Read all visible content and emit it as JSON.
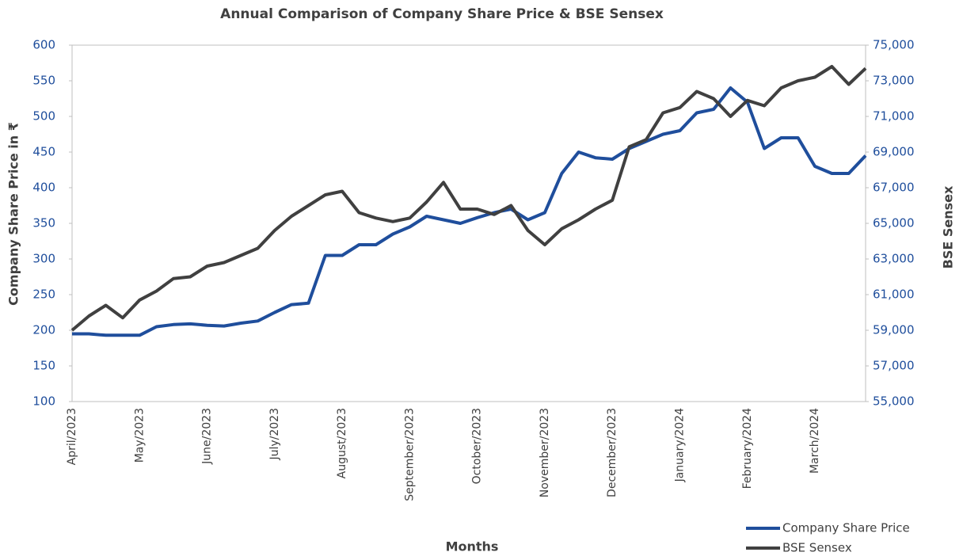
{
  "chart_data": {
    "type": "line",
    "title": "Annual Comparison of Company Share Price & BSE Sensex",
    "x_label": "Months",
    "y_label": "Company Share Price in ₹",
    "y2_label": "BSE Sensex",
    "categories": [
      "April/2023",
      null,
      null,
      null,
      "May/2023",
      null,
      null,
      null,
      "June/2023",
      null,
      null,
      null,
      "July/2023",
      null,
      null,
      null,
      "August/2023",
      null,
      null,
      null,
      "September/2023",
      null,
      null,
      null,
      "October/2023",
      null,
      null,
      null,
      "November/2023",
      null,
      null,
      null,
      "December/2023",
      null,
      null,
      null,
      "January/2024",
      null,
      null,
      null,
      "February/2024",
      null,
      null,
      null,
      "March/2024",
      null,
      null,
      null
    ],
    "series": [
      {
        "name": "Company Share Price",
        "color": "#1f4e9c",
        "values": [
          195,
          195,
          193,
          193,
          193,
          205,
          208,
          209,
          207,
          206,
          210,
          213,
          225,
          236,
          238,
          305,
          305,
          320,
          320,
          335,
          345,
          360,
          355,
          350,
          358,
          365,
          370,
          355,
          365,
          420,
          450,
          442,
          440,
          455,
          465,
          475,
          480,
          505,
          510,
          540,
          520,
          455,
          470,
          470,
          430,
          420,
          420,
          445
        ]
      },
      {
        "name": "BSE Sensex",
        "color": "#404040",
        "axis": "y2",
        "values": [
          59000,
          59800,
          60400,
          59700,
          60700,
          61200,
          61900,
          62000,
          62600,
          62800,
          63200,
          63600,
          64600,
          65400,
          66000,
          66600,
          66800,
          65600,
          65300,
          65100,
          65300,
          66200,
          67300,
          65800,
          65800,
          65500,
          66000,
          64600,
          63800,
          64700,
          65200,
          65800,
          66300,
          69300,
          69700,
          71200,
          71500,
          72400,
          72000,
          71000,
          71900,
          71600,
          72600,
          73000,
          73200,
          73800,
          72800,
          73700
        ]
      }
    ],
    "ylim": [
      100,
      600
    ],
    "yticks": [
      100,
      150,
      200,
      250,
      300,
      350,
      400,
      450,
      500,
      550,
      600
    ],
    "y2lim": [
      55000,
      75000
    ],
    "y2ticks": [
      {
        "value": 55000,
        "label": "55,000"
      },
      {
        "value": 57000,
        "label": "57,000"
      },
      {
        "value": 59000,
        "label": "59,000"
      },
      {
        "value": 61000,
        "label": "61,000"
      },
      {
        "value": 63000,
        "label": "63,000"
      },
      {
        "value": 65000,
        "label": "65,000"
      },
      {
        "value": 67000,
        "label": "67,000"
      },
      {
        "value": 69000,
        "label": "69,000"
      },
      {
        "value": 71000,
        "label": "71,000"
      },
      {
        "value": 73000,
        "label": "73,000"
      },
      {
        "value": 75000,
        "label": "75,000"
      }
    ],
    "legend": "bottom-right"
  }
}
